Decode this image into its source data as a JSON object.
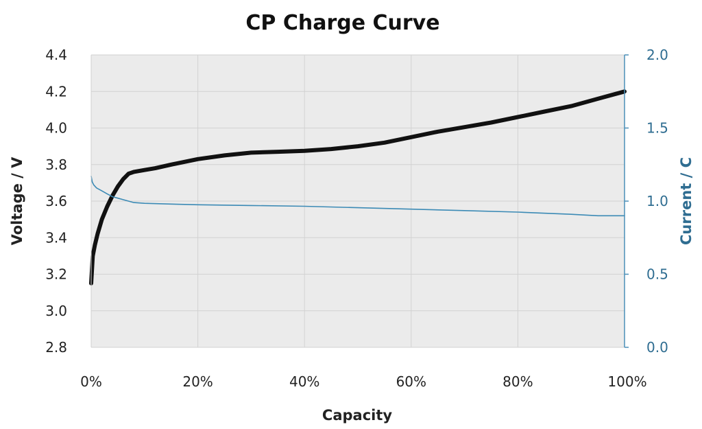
{
  "chart_data": {
    "type": "line",
    "title": "CP Charge Curve",
    "xlabel": "Capacity",
    "ylabel": "Voltage / V",
    "ylabel_right": "Current / C",
    "xlim": [
      0,
      100
    ],
    "ylim": [
      2.8,
      4.4
    ],
    "ylim_right": [
      0.0,
      2.0
    ],
    "x_ticks": [
      "0%",
      "20%",
      "40%",
      "60%",
      "80%",
      "100%"
    ],
    "y_ticks": [
      "2.8",
      "3.0",
      "3.2",
      "3.4",
      "3.6",
      "3.8",
      "4.0",
      "4.2",
      "4.4"
    ],
    "y_ticks_right": [
      "0.0",
      "0.5",
      "1.0",
      "1.5",
      "2.0"
    ],
    "grid": true,
    "series": [
      {
        "name": "Voltage / V",
        "axis": "left",
        "color": "#111111",
        "x": [
          0,
          0.3,
          0.7,
          1.2,
          2,
          3,
          4,
          5,
          6,
          7,
          8,
          9,
          10,
          12,
          15,
          20,
          25,
          30,
          35,
          40,
          45,
          50,
          55,
          60,
          65,
          70,
          75,
          80,
          85,
          90,
          95,
          100
        ],
        "y": [
          3.15,
          3.3,
          3.36,
          3.42,
          3.5,
          3.57,
          3.63,
          3.68,
          3.72,
          3.75,
          3.76,
          3.765,
          3.77,
          3.78,
          3.8,
          3.83,
          3.85,
          3.865,
          3.87,
          3.875,
          3.885,
          3.9,
          3.92,
          3.95,
          3.98,
          4.005,
          4.03,
          4.06,
          4.09,
          4.12,
          4.16,
          4.2
        ]
      },
      {
        "name": "Current / C",
        "axis": "right",
        "color": "#3b8ab5",
        "x": [
          0,
          0.2,
          0.5,
          1,
          2,
          3,
          4,
          5,
          6,
          8,
          10,
          15,
          20,
          30,
          40,
          50,
          60,
          70,
          80,
          90,
          95,
          100
        ],
        "y": [
          1.17,
          1.13,
          1.11,
          1.09,
          1.07,
          1.05,
          1.03,
          1.02,
          1.01,
          0.99,
          0.985,
          0.98,
          0.975,
          0.97,
          0.965,
          0.955,
          0.945,
          0.935,
          0.925,
          0.91,
          0.9,
          0.9
        ]
      }
    ]
  }
}
